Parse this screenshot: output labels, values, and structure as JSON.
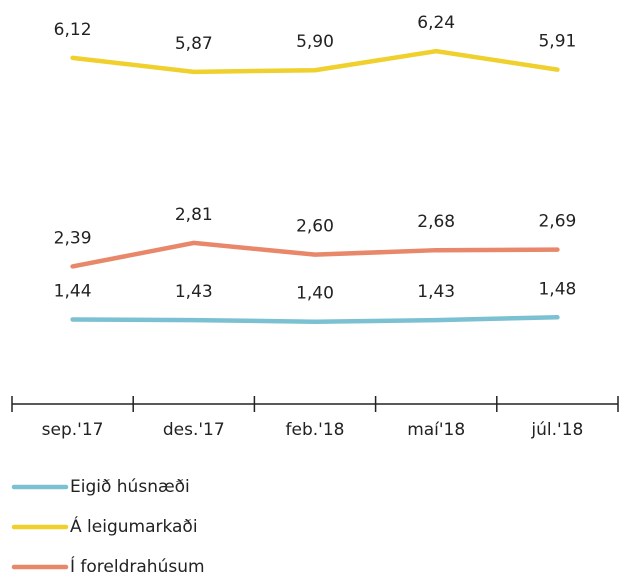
{
  "chart_data": {
    "type": "line",
    "categories": [
      "sep.'17",
      "des.'17",
      "feb.'18",
      "maí'18",
      "júl.'18"
    ],
    "series": [
      {
        "name": "Eigið húsnæði",
        "color": "#7cc1d1",
        "values": [
          1.44,
          1.43,
          1.4,
          1.43,
          1.48
        ],
        "value_labels": [
          "1,44",
          "1,43",
          "1,40",
          "1,43",
          "1,48"
        ]
      },
      {
        "name": "Á leigumarkaði",
        "color": "#f0d02c",
        "values": [
          6.12,
          5.87,
          5.9,
          6.24,
          5.91
        ],
        "value_labels": [
          "6,12",
          "5,87",
          "5,90",
          "6,24",
          "5,91"
        ]
      },
      {
        "name": "Í foreldrahúsum",
        "color": "#e8876a",
        "values": [
          2.39,
          2.81,
          2.6,
          2.68,
          2.69
        ],
        "value_labels": [
          "2,39",
          "2,81",
          "2,60",
          "2,68",
          "2,69"
        ]
      }
    ]
  }
}
